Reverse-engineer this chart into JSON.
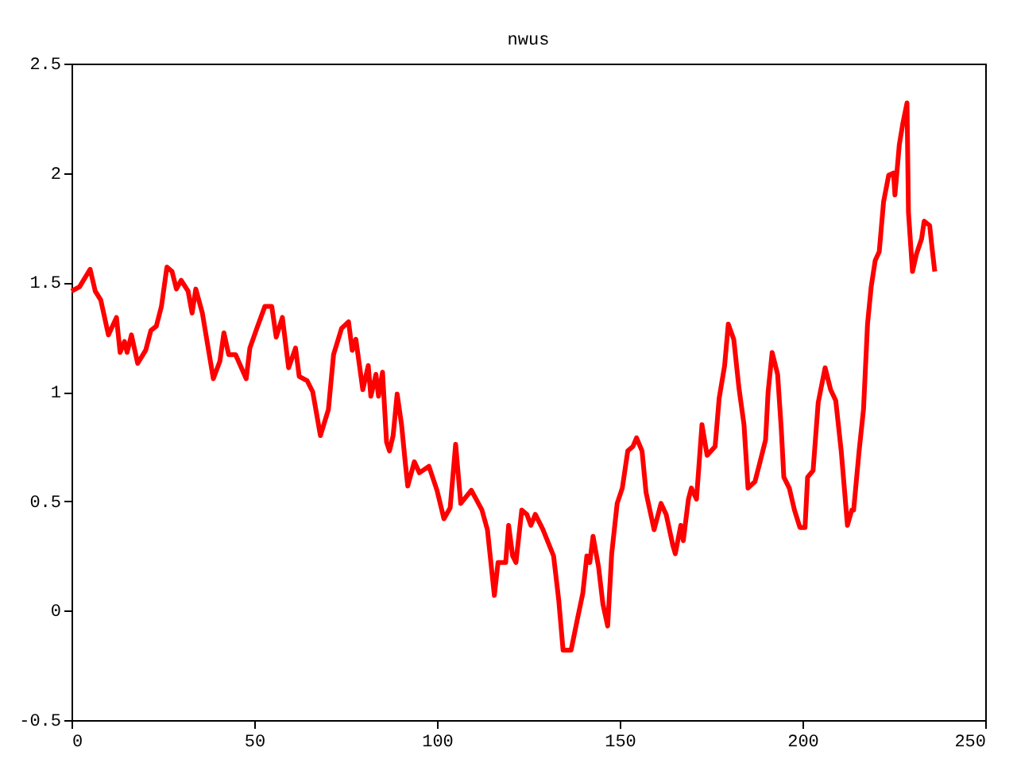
{
  "chart_data": {
    "type": "line",
    "title": "nwus",
    "x": [
      0,
      2.2,
      5.1,
      6.5,
      8,
      10.1,
      12.3,
      13.3,
      14.5,
      15.2,
      16.4,
      18.1,
      20.3,
      21.7,
      23.2,
      24.6,
      26.1,
      27.5,
      28.7,
      30,
      31.9,
      33,
      34,
      35.8,
      37.2,
      38.8,
      40.6,
      41.7,
      43,
      44.9,
      47.8,
      48.8,
      50.7,
      52.9,
      54.8,
      56,
      57.7,
      59.4,
      61.3,
      62.3,
      64.5,
      66,
      68.1,
      70.3,
      71.7,
      73.9,
      75.8,
      76.8,
      77.8,
      79.7,
      81.2,
      81.9,
      83.3,
      84,
      85.1,
      86.2,
      87,
      88,
      89.1,
      90.3,
      91.3,
      92,
      93.8,
      95.2,
      97.8,
      100,
      101.9,
      103.6,
      105.1,
      106.5,
      109.4,
      112.3,
      113.8,
      115.7,
      116.7,
      118.8,
      119.6,
      120.7,
      121.6,
      123.2,
      124.6,
      125.7,
      126.9,
      129,
      131.9,
      133.3,
      134.5,
      136.7,
      138.4,
      139.9,
      141,
      141.8,
      142.7,
      144.2,
      145.4,
      146.7,
      147.8,
      149.3,
      150.7,
      152.2,
      153.6,
      154.6,
      156.1,
      157.2,
      159.4,
      161.3,
      162.7,
      164.5,
      165.2,
      166.7,
      167.4,
      168.8,
      169.6,
      171,
      172.5,
      173.9,
      176.1,
      177.2,
      178.7,
      179.7,
      181.2,
      182.6,
      184,
      185.1,
      187,
      188.4,
      189.9,
      190.6,
      191.7,
      193.2,
      194.2,
      194.9,
      196.4,
      197.8,
      199.3,
      200.7,
      201.4,
      202.9,
      204.3,
      205,
      206.2,
      207.7,
      209.1,
      210.6,
      212.3,
      213.5,
      214,
      215.5,
      216.7,
      217.8,
      218.8,
      219.9,
      221,
      222.2,
      223.6,
      224.9,
      225.3,
      226.5,
      227.5,
      228.6,
      229,
      230.1,
      231.2,
      232.6,
      233.3,
      234.8,
      235.5,
      236.2
    ],
    "series": [
      {
        "color": "#ff0000",
        "values": [
          1.46,
          1.48,
          1.56,
          1.46,
          1.42,
          1.26,
          1.34,
          1.18,
          1.23,
          1.18,
          1.26,
          1.13,
          1.19,
          1.28,
          1.3,
          1.39,
          1.57,
          1.55,
          1.47,
          1.51,
          1.46,
          1.36,
          1.47,
          1.36,
          1.22,
          1.06,
          1.14,
          1.27,
          1.17,
          1.17,
          1.06,
          1.2,
          1.29,
          1.39,
          1.39,
          1.25,
          1.34,
          1.11,
          1.2,
          1.07,
          1.05,
          1.0,
          0.8,
          0.92,
          1.17,
          1.29,
          1.32,
          1.19,
          1.24,
          1.01,
          1.12,
          0.98,
          1.08,
          0.98,
          1.09,
          0.77,
          0.73,
          0.8,
          0.99,
          0.85,
          0.68,
          0.57,
          0.68,
          0.63,
          0.66,
          0.55,
          0.42,
          0.47,
          0.76,
          0.49,
          0.55,
          0.46,
          0.37,
          0.07,
          0.22,
          0.22,
          0.39,
          0.25,
          0.22,
          0.46,
          0.44,
          0.39,
          0.44,
          0.37,
          0.25,
          0.05,
          -0.18,
          -0.18,
          -0.04,
          0.08,
          0.25,
          0.22,
          0.34,
          0.2,
          0.03,
          -0.07,
          0.26,
          0.49,
          0.56,
          0.73,
          0.75,
          0.79,
          0.73,
          0.54,
          0.37,
          0.49,
          0.44,
          0.3,
          0.26,
          0.39,
          0.32,
          0.51,
          0.56,
          0.51,
          0.85,
          0.71,
          0.75,
          0.97,
          1.12,
          1.31,
          1.24,
          1.02,
          0.85,
          0.56,
          0.59,
          0.68,
          0.78,
          1.0,
          1.18,
          1.08,
          0.83,
          0.61,
          0.56,
          0.46,
          0.38,
          0.38,
          0.61,
          0.64,
          0.95,
          1.01,
          1.11,
          1.01,
          0.96,
          0.73,
          0.39,
          0.46,
          0.46,
          0.73,
          0.92,
          1.31,
          1.48,
          1.6,
          1.64,
          1.87,
          1.99,
          2.0,
          1.9,
          2.13,
          2.23,
          2.32,
          1.82,
          1.55,
          1.63,
          1.7,
          1.78,
          1.76,
          1.65,
          1.55
        ]
      }
    ],
    "xlim": [
      0,
      250
    ],
    "xticks": [
      0,
      50,
      100,
      150,
      200,
      250
    ],
    "ylim": [
      -0.5,
      2.5
    ],
    "yticks": [
      -0.5,
      0,
      0.5,
      1,
      1.5,
      2,
      2.5
    ],
    "grid": false,
    "legend": false,
    "marker": "none",
    "line_style": "solid"
  }
}
